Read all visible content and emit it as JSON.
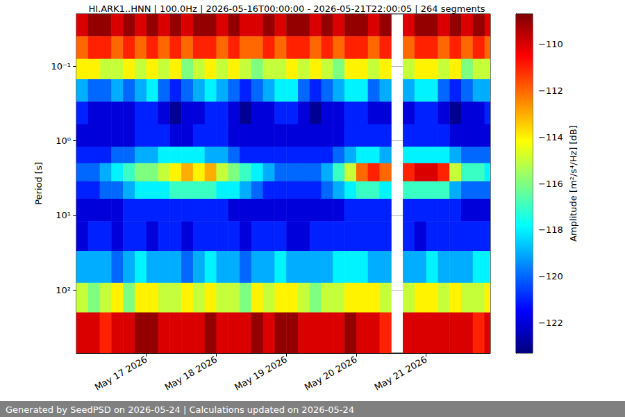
{
  "chart_data": {
    "type": "heatmap",
    "title": "HI.ARK1..HNN | 100.0Hz | 2026-05-16T00:00:00 - 2026-05-21T22:00:05 | 264 segments",
    "ylabel": "Period [s]",
    "log": "y",
    "grid": true,
    "xlim": [
      "2026-05-16T00:00:00",
      "2026-05-21T22:00:05"
    ],
    "xticks": [
      {
        "value": "2026-05-17T00:00:00",
        "label": "May 17 2026"
      },
      {
        "value": "2026-05-18T00:00:00",
        "label": "May 18 2026"
      },
      {
        "value": "2026-05-19T00:00:00",
        "label": "May 19 2026"
      },
      {
        "value": "2026-05-20T00:00:00",
        "label": "May 20 2026"
      },
      {
        "value": "2026-05-21T00:00:00",
        "label": "May 21 2026"
      }
    ],
    "ylim": [
      0.02,
      700
    ],
    "yticks": [
      {
        "value": 0.1,
        "label": "10⁻¹"
      },
      {
        "value": 1,
        "label": "10⁰"
      },
      {
        "value": 10,
        "label": "10¹"
      },
      {
        "value": 100,
        "label": "10²"
      }
    ],
    "x": [
      "2026-05-16T00:00",
      "2026-05-16T04:00",
      "2026-05-16T08:00",
      "2026-05-16T12:00",
      "2026-05-16T16:00",
      "2026-05-16T20:00",
      "2026-05-17T00:00",
      "2026-05-17T04:00",
      "2026-05-17T08:00",
      "2026-05-17T12:00",
      "2026-05-17T16:00",
      "2026-05-17T20:00",
      "2026-05-18T00:00",
      "2026-05-18T04:00",
      "2026-05-18T08:00",
      "2026-05-18T12:00",
      "2026-05-18T16:00",
      "2026-05-18T20:00",
      "2026-05-19T00:00",
      "2026-05-19T04:00",
      "2026-05-19T08:00",
      "2026-05-19T12:00",
      "2026-05-19T16:00",
      "2026-05-19T20:00",
      "2026-05-20T00:00",
      "2026-05-20T04:00",
      "2026-05-20T08:00",
      "2026-05-20T12:00",
      "2026-05-20T16:00",
      "2026-05-20T20:00",
      "2026-05-21T00:00",
      "2026-05-21T04:00",
      "2026-05-21T08:00",
      "2026-05-21T12:00",
      "2026-05-21T16:00",
      "2026-05-21T20:00"
    ],
    "y_edges": [
      0.02,
      0.04,
      0.08,
      0.15,
      0.3,
      0.6,
      1.2,
      2,
      3.5,
      6,
      12,
      30,
      80,
      200,
      700
    ],
    "cells": [
      [
        -110,
        -109,
        -109,
        -110,
        -109,
        -110,
        -109,
        -110,
        -109,
        -110,
        -109,
        -109,
        -110,
        -109,
        -110,
        -110,
        -109,
        -110,
        -109,
        -109,
        -110,
        -109,
        -110,
        -109,
        -109,
        -110,
        -109,
        null,
        -110,
        -109,
        -109,
        -110,
        -109,
        -110,
        -109,
        -110
      ],
      [
        -112,
        -111,
        -111,
        -112,
        -111,
        -112,
        -111,
        -112,
        -111,
        -112,
        -111,
        -111,
        -112,
        -111,
        -112,
        -112,
        -111,
        -112,
        -111,
        -111,
        -112,
        -111,
        -112,
        -111,
        -111,
        -112,
        -111,
        null,
        -112,
        -111,
        -111,
        -112,
        -111,
        -112,
        -111,
        -112
      ],
      [
        -114,
        -114,
        -115,
        -115,
        -114,
        -115,
        -114,
        -115,
        -114,
        -116,
        -115,
        -114,
        -115,
        -114,
        -115,
        -116,
        -115,
        -115,
        -114,
        -115,
        -114,
        -115,
        -116,
        -114,
        -114,
        -115,
        -114,
        null,
        -115,
        -114,
        -114,
        -115,
        -114,
        -116,
        -115,
        -115
      ],
      [
        -119,
        -120,
        -120,
        -119,
        -120,
        -119,
        -118,
        -120,
        -121,
        -120,
        -119,
        -118,
        -119,
        -120,
        -121,
        -120,
        -119,
        -118,
        -118,
        -120,
        -121,
        -120,
        -119,
        -118,
        -118,
        -120,
        -119,
        null,
        -119,
        -118,
        -118,
        -120,
        -121,
        -120,
        -119,
        -119
      ],
      [
        -121,
        -122,
        -122,
        -122,
        -122,
        -121,
        -121,
        -122,
        -123,
        -122,
        -122,
        -121,
        -121,
        -122,
        -123,
        -122,
        -122,
        -121,
        -121,
        -122,
        -123,
        -122,
        -122,
        -121,
        -121,
        -122,
        -122,
        null,
        -122,
        -121,
        -121,
        -122,
        -123,
        -122,
        -122,
        -121
      ],
      [
        -122,
        -122,
        -122,
        -122,
        -122,
        -121,
        -121,
        -121,
        -122,
        -122,
        -121,
        -121,
        -121,
        -122,
        -122,
        -122,
        -122,
        -122,
        -122,
        -122,
        -122,
        -122,
        -122,
        -121,
        -121,
        -121,
        -121,
        null,
        -121,
        -121,
        -121,
        -121,
        -122,
        -122,
        -122,
        -122
      ],
      [
        -121,
        -121,
        -121,
        -120,
        -120,
        -119,
        -119,
        -118,
        -118,
        -118,
        -118,
        -119,
        -119,
        -120,
        -121,
        -121,
        -121,
        -121,
        -121,
        -121,
        -121,
        -121,
        -120,
        -119,
        -118,
        -118,
        -119,
        null,
        -118,
        -118,
        -118,
        -118,
        -119,
        -120,
        -120,
        -120
      ],
      [
        -120,
        -120,
        -119,
        -118,
        -117,
        -116,
        -116,
        -115,
        -114,
        -113,
        -114,
        -113,
        -115,
        -116,
        -117,
        -118,
        -119,
        -120,
        -120,
        -120,
        -120,
        -119,
        -117,
        -115,
        -112,
        -111,
        -112,
        null,
        -111,
        -110,
        -110,
        -111,
        -115,
        -117,
        -117,
        -118
      ],
      [
        -121,
        -121,
        -120,
        -120,
        -119,
        -118,
        -118,
        -118,
        -117,
        -117,
        -117,
        -117,
        -118,
        -118,
        -119,
        -120,
        -121,
        -121,
        -121,
        -121,
        -121,
        -120,
        -119,
        -118,
        -117,
        -117,
        -118,
        null,
        -117,
        -117,
        -117,
        -117,
        -119,
        -120,
        -120,
        -120
      ],
      [
        -122,
        -122,
        -122,
        -122,
        -121,
        -121,
        -121,
        -121,
        -121,
        -121,
        -121,
        -121,
        -121,
        -122,
        -122,
        -122,
        -122,
        -122,
        -122,
        -122,
        -122,
        -122,
        -122,
        -121,
        -121,
        -121,
        -121,
        null,
        -121,
        -121,
        -121,
        -121,
        -121,
        -122,
        -122,
        -122
      ],
      [
        -122,
        -121,
        -121,
        -122,
        -121,
        -121,
        -122,
        -121,
        -121,
        -122,
        -121,
        -121,
        -121,
        -121,
        -122,
        -121,
        -121,
        -121,
        -122,
        -122,
        -121,
        -121,
        -121,
        -121,
        -121,
        -121,
        -121,
        null,
        -121,
        -122,
        -121,
        -121,
        -121,
        -121,
        -121,
        -121
      ],
      [
        -119,
        -119,
        -119,
        -120,
        -119,
        -118,
        -119,
        -119,
        -119,
        -120,
        -119,
        -118,
        -119,
        -119,
        -120,
        -119,
        -119,
        -118,
        -119,
        -119,
        -119,
        -119,
        -118,
        -118,
        -118,
        -119,
        -119,
        null,
        -119,
        -119,
        -118,
        -119,
        -119,
        -119,
        -118,
        -118
      ],
      [
        -115,
        -116,
        -115,
        -114,
        -116,
        -114,
        -114,
        -115,
        -115,
        -114,
        -115,
        -114,
        -115,
        -115,
        -116,
        -114,
        -115,
        -114,
        -114,
        -115,
        -116,
        -115,
        -115,
        -114,
        -114,
        -114,
        -115,
        null,
        -115,
        -114,
        -114,
        -115,
        -114,
        -115,
        -115,
        -114
      ],
      [
        -110,
        -110,
        -111,
        -110,
        -110,
        -109,
        -109,
        -110,
        -110,
        -110,
        -110,
        -109,
        -110,
        -110,
        -110,
        -109,
        -110,
        -109,
        -109,
        -110,
        -110,
        -110,
        -110,
        -109,
        -110,
        -110,
        -111,
        null,
        -110,
        -110,
        -110,
        -110,
        -110,
        -110,
        -111,
        -110
      ]
    ],
    "colorbar": {
      "label": "Amplitude [m²/s⁴/Hz] [dB]",
      "range": [
        -123.3,
        -108.7
      ],
      "ticks": [
        {
          "value": -122,
          "label": "−122"
        },
        {
          "value": -120,
          "label": "−120"
        },
        {
          "value": -118,
          "label": "−118"
        },
        {
          "value": -116,
          "label": "−116"
        },
        {
          "value": -114,
          "label": "−114"
        },
        {
          "value": -112,
          "label": "−112"
        },
        {
          "value": -110,
          "label": "−110"
        }
      ]
    }
  },
  "footer": "Generated by SeedPSD on 2026-05-24 | Calculations updated on 2026-05-24"
}
